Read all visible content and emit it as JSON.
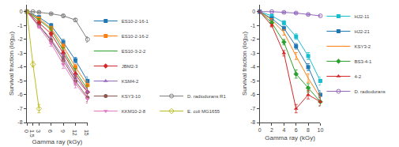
{
  "chart_data": [
    {
      "type": "line",
      "xlabel": "Gamma ray (kGy)",
      "ylabel": "Survival fraction (log₁₀)",
      "xlim": [
        0,
        15
      ],
      "ylim": [
        -8,
        0.5
      ],
      "xticks": [
        0,
        1.5,
        3,
        6,
        9,
        12,
        15
      ],
      "yticks": [
        0,
        -1,
        -2,
        -3,
        -4,
        -5,
        -6,
        -7,
        -8
      ],
      "grid": false,
      "legend": "lower right",
      "series": [
        {
          "name": "ES10-2-16-1",
          "marker": "square",
          "x": [
            0,
            3,
            6,
            9,
            12,
            15
          ],
          "values": [
            0,
            -0.4,
            -1.0,
            -2.2,
            -3.5,
            -5.0
          ],
          "yerr": [
            0,
            0.1,
            0.15,
            0.2,
            0.2,
            0.3
          ]
        },
        {
          "name": "ES10-2-16-2",
          "marker": "square",
          "x": [
            0,
            3,
            6,
            9,
            12,
            15
          ],
          "values": [
            0,
            -0.5,
            -1.2,
            -2.5,
            -4.0,
            -5.3
          ],
          "yerr": [
            0,
            0.1,
            0.15,
            0.2,
            0.2,
            0.3
          ]
        },
        {
          "name": "ES10-3-2-2",
          "marker": "plus",
          "x": [
            0,
            3,
            6,
            9,
            12,
            15
          ],
          "values": [
            0,
            -0.6,
            -1.3,
            -2.8,
            -4.3,
            -5.6
          ],
          "yerr": [
            0,
            0.1,
            0.15,
            0.2,
            0.2,
            0.3
          ]
        },
        {
          "name": "JBM2-3",
          "marker": "diamond",
          "x": [
            0,
            3,
            6,
            9,
            12,
            15
          ],
          "values": [
            0,
            -0.8,
            -1.6,
            -3.0,
            -4.5,
            -5.8
          ],
          "yerr": [
            0,
            0.1,
            0.15,
            0.2,
            0.2,
            0.3
          ]
        },
        {
          "name": "KSM4-2",
          "marker": "triangle-up",
          "x": [
            0,
            3,
            6,
            9,
            12,
            15
          ],
          "values": [
            0,
            -1.0,
            -2.0,
            -3.3,
            -4.8,
            -5.8
          ],
          "yerr": [
            0,
            0.1,
            0.2,
            0.25,
            0.25,
            0.3
          ]
        },
        {
          "name": "KSY3-10",
          "marker": "circle",
          "x": [
            0,
            3,
            6,
            9,
            12,
            15
          ],
          "values": [
            0,
            -1.0,
            -2.1,
            -3.5,
            -5.0,
            -6.2
          ],
          "yerr": [
            0,
            0.1,
            0.2,
            0.25,
            0.3,
            0.3
          ]
        },
        {
          "name": "KKM10-2-8",
          "marker": "triangle-down",
          "x": [
            0,
            3,
            6,
            9,
            12,
            15
          ],
          "values": [
            0,
            -1.1,
            -2.3,
            -3.8,
            -5.2,
            -6.3
          ],
          "yerr": [
            0,
            0.1,
            0.2,
            0.3,
            0.3,
            0.3
          ]
        },
        {
          "name": "D. radiodurans R1",
          "marker": "circle-open",
          "x": [
            0,
            1.5,
            3,
            6,
            9,
            12,
            15
          ],
          "values": [
            0,
            0,
            -0.05,
            -0.15,
            -0.3,
            -0.6,
            -2.0
          ],
          "yerr": [
            0,
            0,
            0.05,
            0.05,
            0.1,
            0.1,
            0.2
          ]
        },
        {
          "name": "E. coli MG1655",
          "marker": "diamond-open",
          "x": [
            0,
            1.5,
            3
          ],
          "values": [
            0,
            -3.8,
            -7.0
          ],
          "yerr": [
            0,
            0.2,
            0.3
          ]
        }
      ]
    },
    {
      "type": "line",
      "xlabel": "Gamma ray (kGy)",
      "ylabel": "Survival fraction (log₁₀)",
      "xlim": [
        0,
        10
      ],
      "ylim": [
        -8,
        0.5
      ],
      "xticks": [
        0,
        2,
        4,
        6,
        8,
        10
      ],
      "yticks": [
        0,
        -1,
        -2,
        -3,
        -4,
        -5,
        -6,
        -7,
        -8
      ],
      "grid": false,
      "legend": "upper right",
      "series": [
        {
          "name": "HJ2-11",
          "marker": "square",
          "x": [
            0,
            2,
            4,
            6,
            8,
            10
          ],
          "values": [
            0,
            -0.3,
            -0.8,
            -1.8,
            -3.2,
            -5.0
          ],
          "yerr": [
            0,
            0.1,
            0.15,
            0.2,
            0.25,
            0.3
          ]
        },
        {
          "name": "HJ2-21",
          "marker": "square",
          "x": [
            0,
            2,
            4,
            6,
            8,
            10
          ],
          "values": [
            0,
            -0.5,
            -1.2,
            -2.5,
            -4.0,
            -6.0
          ],
          "yerr": [
            0,
            0.1,
            0.15,
            0.2,
            0.25,
            0.3
          ]
        },
        {
          "name": "KSY3-2",
          "marker": "plus",
          "x": [
            0,
            2,
            4,
            6,
            8,
            10
          ],
          "values": [
            0,
            -0.6,
            -1.5,
            -3.2,
            -4.8,
            -6.2
          ],
          "yerr": [
            0,
            0.1,
            0.2,
            0.25,
            0.3,
            0.3
          ]
        },
        {
          "name": "BS3-4-1",
          "marker": "diamond",
          "x": [
            0,
            2,
            4,
            6,
            8,
            10
          ],
          "values": [
            0,
            -0.8,
            -2.2,
            -4.5,
            -5.5,
            -6.5
          ],
          "yerr": [
            0,
            0.1,
            0.2,
            0.3,
            0.3,
            0.3
          ]
        },
        {
          "name": "4-2",
          "marker": "triangle-up",
          "x": [
            0,
            2,
            4,
            6,
            8,
            10
          ],
          "values": [
            0,
            -1.0,
            -3.0,
            -7.0,
            -6.0,
            -6.5
          ],
          "yerr": [
            0,
            0.1,
            0.2,
            0.3,
            0.3,
            0.3
          ]
        },
        {
          "name": "D. radiodurans",
          "marker": "circle-open",
          "x": [
            0,
            2,
            4,
            6,
            8,
            10
          ],
          "values": [
            0,
            0,
            -0.05,
            -0.1,
            -0.2,
            -0.3
          ],
          "yerr": [
            0,
            0,
            0.05,
            0.05,
            0.05,
            0.05
          ]
        }
      ]
    }
  ]
}
